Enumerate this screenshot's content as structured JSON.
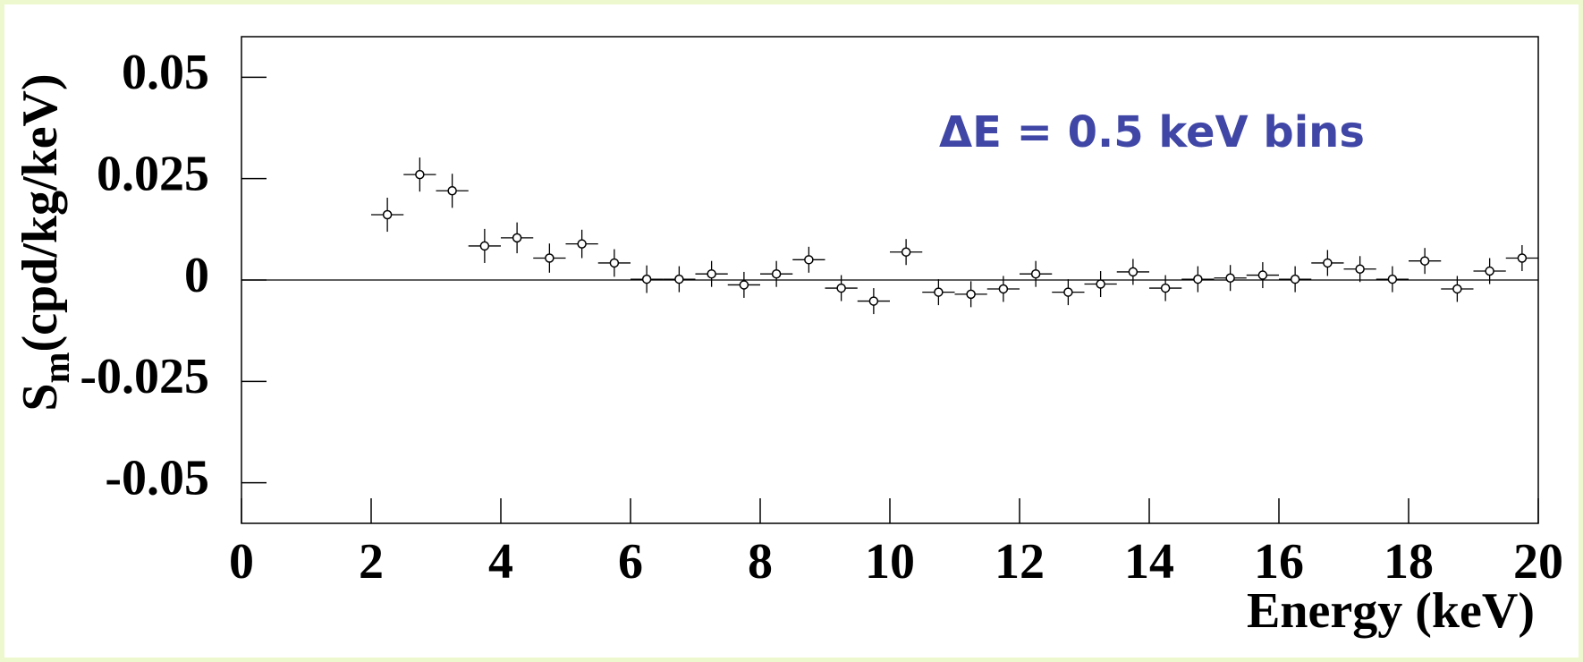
{
  "chart_data": {
    "type": "scatter",
    "annotation": "ΔE = 0.5 keV bins",
    "xlabel": "Energy (keV)",
    "ylabel": "S",
    "ylabel_sub": "m",
    "ylabel_unit": "(cpd/kg/keV)",
    "xlim": [
      0,
      20
    ],
    "xticks": [
      0,
      2,
      4,
      6,
      8,
      10,
      12,
      14,
      16,
      18,
      20
    ],
    "ylim": [
      -0.06,
      0.06
    ],
    "yticks": [
      -0.05,
      -0.025,
      0,
      0.025,
      0.05
    ],
    "color": "#000000",
    "xerr": 0.25,
    "x": [
      2.25,
      2.75,
      3.25,
      3.75,
      4.25,
      4.75,
      5.25,
      5.75,
      6.25,
      6.75,
      7.25,
      7.75,
      8.25,
      8.75,
      9.25,
      9.75,
      10.25,
      10.75,
      11.25,
      11.75,
      12.25,
      12.75,
      13.25,
      13.75,
      14.25,
      14.75,
      15.25,
      15.75,
      16.25,
      16.75,
      17.25,
      17.75,
      18.25,
      18.75,
      19.25,
      19.75
    ],
    "values": [
      0.0161,
      0.026,
      0.022,
      0.0084,
      0.0104,
      0.0054,
      0.0089,
      0.0042,
      0.0002,
      0.0002,
      0.0015,
      -0.0012,
      0.0015,
      0.005,
      -0.002,
      -0.0052,
      0.0069,
      -0.003,
      -0.0035,
      -0.0022,
      0.0015,
      -0.003,
      -0.001,
      0.002,
      -0.002,
      0.0002,
      0.0005,
      0.0012,
      0.0002,
      0.0042,
      0.0027,
      0.0002,
      0.0047,
      -0.0022,
      0.0022,
      0.0054
    ],
    "errors": [
      0.0042,
      0.0042,
      0.0042,
      0.0042,
      0.0038,
      0.0036,
      0.0035,
      0.0034,
      0.0034,
      0.0032,
      0.0032,
      0.0032,
      0.0032,
      0.0032,
      0.0032,
      0.0032,
      0.0032,
      0.0032,
      0.0032,
      0.0032,
      0.0032,
      0.0032,
      0.0032,
      0.0032,
      0.0032,
      0.0032,
      0.0032,
      0.0032,
      0.0032,
      0.0032,
      0.0032,
      0.0032,
      0.0032,
      0.0032,
      0.0032,
      0.0032
    ]
  }
}
